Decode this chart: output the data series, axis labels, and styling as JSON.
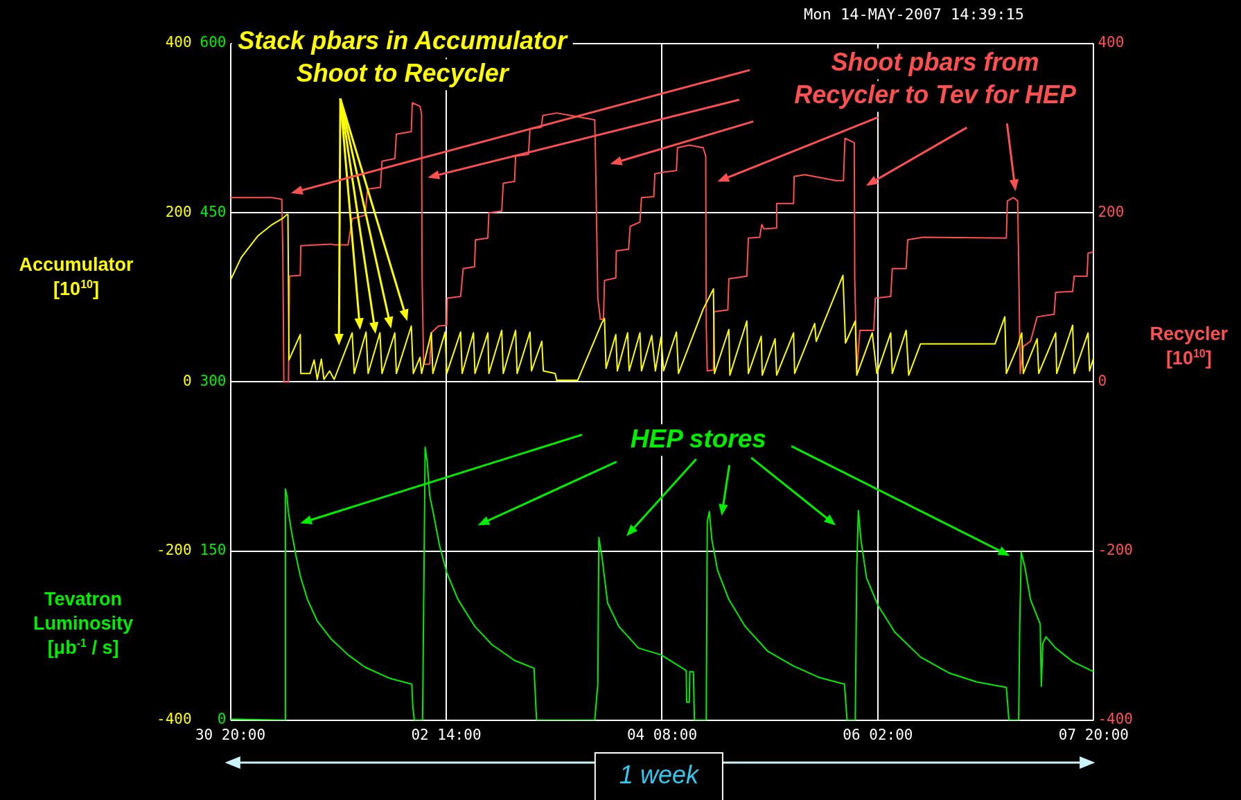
{
  "chart_data": {
    "type": "line",
    "title": "Mon 14-MAY-2007 14:39:15",
    "ylabel": "Accumulator\n[10$^{10}$]",
    "y2label": "Recycler\n[10$^{10}$]",
    "y3label": "Tevatron\nLuminosity\n[μb$^{-1}$ / s]",
    "annotations": [
      "Stack pbars in Accumulator\nShoot to Recycler",
      "Shoot pbars from\nRecycler to Tev for HEP",
      "HEP stores",
      "1 week"
    ],
    "xlim": [
      "2007-04-30T20:00",
      "2007-05-07T20:00"
    ],
    "xticks": [
      {
        "value": "2007-04-30T20:00",
        "label": "30 20:00"
      },
      {
        "value": "2007-05-02T14:00",
        "label": "02 14:00"
      },
      {
        "value": "2007-05-04T08:00",
        "label": "04 08:00"
      },
      {
        "value": "2007-05-06T02:00",
        "label": "06 02:00"
      },
      {
        "value": "2007-05-07T20:00",
        "label": "07 20:00"
      }
    ],
    "ylim": [
      -400,
      400
    ],
    "yticks": [
      -400,
      -200,
      0,
      200,
      400
    ],
    "y2lim": [
      -400,
      400
    ],
    "y2ticks": [
      -400,
      -200,
      0,
      200,
      400
    ],
    "y3lim": [
      0,
      600
    ],
    "y3ticks": [
      0,
      150,
      300,
      450,
      600
    ],
    "grid": true,
    "marker": "none",
    "series": [
      {
        "color": "#ffff00",
        "x": [
          "2007-04-30T20:00",
          "2007-04-30T22:06",
          "2007-05-01T01:24",
          "2007-05-01T04:06",
          "2007-05-01T06:18",
          "2007-05-01T07:00",
          "2007-05-01T07:12",
          "2007-05-01T07:24",
          "2007-05-01T09:36",
          "2007-05-01T09:42",
          "2007-05-01T11:30",
          "2007-05-01T12:18",
          "2007-05-01T12:54",
          "2007-05-01T13:42",
          "2007-05-01T14:12",
          "2007-05-01T15:18",
          "2007-05-01T16:12",
          "2007-05-01T19:42",
          "2007-05-01T20:06",
          "2007-05-01T22:24",
          "2007-05-01T22:48",
          "2007-05-02T01:06",
          "2007-05-02T01:30",
          "2007-05-02T04:00",
          "2007-05-02T04:18",
          "2007-05-02T07:12",
          "2007-05-02T07:36",
          "2007-05-02T08:54",
          "2007-05-02T09:12",
          "2007-05-02T11:06",
          "2007-05-02T11:24",
          "2007-05-02T13:48",
          "2007-05-02T14:06",
          "2007-05-02T16:48",
          "2007-05-02T17:06",
          "2007-05-02T19:18",
          "2007-05-02T19:36",
          "2007-05-02T22:06",
          "2007-05-02T22:18",
          "2007-05-03T00:48",
          "2007-05-03T01:06",
          "2007-05-03T03:30",
          "2007-05-03T03:48",
          "2007-05-03T06:18",
          "2007-05-03T06:36",
          "2007-05-03T08:36",
          "2007-05-03T08:54",
          "2007-05-03T11:12",
          "2007-05-03T11:30",
          "2007-05-03T15:36",
          "2007-05-03T20:18",
          "2007-05-03T20:48",
          "2007-05-03T21:06",
          "2007-05-03T23:00",
          "2007-05-03T23:18",
          "2007-05-04T01:18",
          "2007-05-04T01:36",
          "2007-05-04T03:42",
          "2007-05-04T04:00",
          "2007-05-04T06:00",
          "2007-05-04T06:42",
          "2007-05-04T07:48",
          "2007-05-04T08:18",
          "2007-05-04T10:48",
          "2007-05-04T11:12",
          "2007-05-04T16:00",
          "2007-05-04T18:00",
          "2007-05-04T18:12",
          "2007-05-04T21:00",
          "2007-05-04T21:12",
          "2007-05-05T00:30",
          "2007-05-05T00:48",
          "2007-05-05T03:18",
          "2007-05-05T03:30",
          "2007-05-05T06:00",
          "2007-05-05T06:18",
          "2007-05-05T09:36",
          "2007-05-05T09:48",
          "2007-05-05T13:42",
          "2007-05-05T14:00",
          "2007-05-05T19:12",
          "2007-05-05T19:42",
          "2007-05-05T21:36",
          "2007-05-05T21:54",
          "2007-05-06T00:54",
          "2007-05-06T01:48",
          "2007-05-06T04:30",
          "2007-05-06T04:48",
          "2007-05-06T07:30",
          "2007-05-06T08:00",
          "2007-05-06T10:18",
          "2007-05-07T00:48",
          "2007-05-07T02:42",
          "2007-05-07T03:00",
          "2007-05-07T05:12",
          "2007-05-07T06:00",
          "2007-05-07T06:18",
          "2007-05-07T09:00",
          "2007-05-07T09:18",
          "2007-05-07T12:36",
          "2007-05-07T12:48",
          "2007-05-07T15:54",
          "2007-05-07T16:12",
          "2007-05-07T18:54",
          "2007-05-07T19:12",
          "2007-05-07T20:00"
        ],
        "values": [
          120,
          147,
          173,
          186,
          194,
          198,
          198,
          26,
          56,
          10,
          10,
          26,
          3,
          27,
          3,
          13,
          3,
          58,
          10,
          59,
          10,
          58,
          10,
          58,
          10,
          66,
          10,
          29,
          10,
          58,
          10,
          59,
          10,
          59,
          10,
          58,
          10,
          58,
          10,
          61,
          10,
          61,
          10,
          59,
          13,
          48,
          13,
          10,
          2,
          2,
          70,
          75,
          16,
          56,
          13,
          58,
          13,
          58,
          13,
          55,
          13,
          53,
          13,
          59,
          10,
          86,
          110,
          10,
          62,
          8,
          72,
          10,
          54,
          8,
          51,
          8,
          58,
          10,
          69,
          48,
          126,
          46,
          72,
          8,
          58,
          10,
          58,
          10,
          61,
          8,
          45,
          45,
          77,
          10,
          42,
          58,
          10,
          51,
          10,
          58,
          10,
          67,
          10,
          58,
          13,
          29
        ]
      },
      {
        "color": "#ff5050",
        "axis": "y2",
        "x": [
          "2007-04-30T20:00",
          "2007-05-01T04:06",
          "2007-05-01T06:00",
          "2007-05-01T06:12",
          "2007-05-01T06:24",
          "2007-05-01T07:18",
          "2007-05-01T07:30",
          "2007-05-01T09:36",
          "2007-05-01T09:42",
          "2007-05-01T15:36",
          "2007-05-01T16:12",
          "2007-05-01T18:54",
          "2007-05-01T19:42",
          "2007-05-01T22:12",
          "2007-05-01T22:42",
          "2007-05-02T01:12",
          "2007-05-02T01:30",
          "2007-05-02T04:00",
          "2007-05-02T04:18",
          "2007-05-02T07:12",
          "2007-05-02T07:24",
          "2007-05-02T08:54",
          "2007-05-02T09:12",
          "2007-05-02T09:18",
          "2007-05-02T09:36",
          "2007-05-02T10:48",
          "2007-05-02T11:06",
          "2007-05-02T12:30",
          "2007-05-02T14:06",
          "2007-05-02T14:12",
          "2007-05-02T16:48",
          "2007-05-02T17:18",
          "2007-05-02T19:30",
          "2007-05-02T19:42",
          "2007-05-02T22:06",
          "2007-05-02T22:18",
          "2007-05-03T00:48",
          "2007-05-03T01:06",
          "2007-05-03T03:18",
          "2007-05-03T03:30",
          "2007-05-03T06:00",
          "2007-05-03T06:18",
          "2007-05-03T08:30",
          "2007-05-03T08:48",
          "2007-05-03T11:30",
          "2007-05-03T14:12",
          "2007-05-03T17:00",
          "2007-05-03T18:54",
          "2007-05-03T19:06",
          "2007-05-03T19:30",
          "2007-05-03T20:00",
          "2007-05-03T20:36",
          "2007-05-03T20:48",
          "2007-05-03T23:00",
          "2007-05-03T23:06",
          "2007-05-04T01:30",
          "2007-05-04T01:48",
          "2007-05-04T03:42",
          "2007-05-04T04:00",
          "2007-05-04T06:24",
          "2007-05-04T06:36",
          "2007-05-04T08:18",
          "2007-05-04T10:48",
          "2007-05-04T11:00",
          "2007-05-04T13:18",
          "2007-05-04T16:00",
          "2007-05-04T16:30",
          "2007-05-04T16:36",
          "2007-05-04T16:48",
          "2007-05-04T18:00",
          "2007-05-04T18:06",
          "2007-05-04T20:48",
          "2007-05-04T21:00",
          "2007-05-05T00:30",
          "2007-05-05T00:48",
          "2007-05-05T03:00",
          "2007-05-05T03:24",
          "2007-05-05T03:48",
          "2007-05-05T06:12",
          "2007-05-05T06:18",
          "2007-05-05T09:36",
          "2007-05-05T09:42",
          "2007-05-05T11:48",
          "2007-05-05T14:30",
          "2007-05-05T17:48",
          "2007-05-05T19:18",
          "2007-05-05T19:36",
          "2007-05-05T21:24",
          "2007-05-05T21:30",
          "2007-05-05T21:54",
          "2007-05-05T22:30",
          "2007-05-06T01:12",
          "2007-05-06T01:30",
          "2007-05-06T04:30",
          "2007-05-06T04:48",
          "2007-05-06T07:30",
          "2007-05-06T07:48",
          "2007-05-06T10:48",
          "2007-05-07T03:00",
          "2007-05-07T03:12",
          "2007-05-07T04:24",
          "2007-05-07T05:12",
          "2007-05-07T05:24",
          "2007-05-07T05:42",
          "2007-05-07T06:18",
          "2007-05-07T07:42",
          "2007-05-07T09:00",
          "2007-05-07T12:18",
          "2007-05-07T12:36",
          "2007-05-07T15:54",
          "2007-05-07T16:12",
          "2007-05-07T18:42",
          "2007-05-07T18:54",
          "2007-05-07T20:00"
        ],
        "values": [
          218,
          218,
          216,
          154,
          0,
          0,
          125,
          126,
          161,
          163,
          162,
          162,
          193,
          197,
          228,
          230,
          261,
          264,
          293,
          296,
          330,
          326,
          317,
          125,
          21,
          21,
          58,
          66,
          67,
          99,
          101,
          134,
          136,
          168,
          170,
          200,
          202,
          235,
          237,
          267,
          269,
          299,
          301,
          315,
          318,
          315,
          312,
          310,
          250,
          99,
          74,
          74,
          120,
          123,
          155,
          157,
          184,
          189,
          218,
          219,
          246,
          248,
          250,
          277,
          280,
          277,
          267,
          67,
          13,
          14,
          83,
          85,
          122,
          125,
          170,
          171,
          186,
          181,
          182,
          211,
          211,
          243,
          245,
          242,
          238,
          238,
          288,
          283,
          122,
          13,
          61,
          61,
          99,
          101,
          134,
          134,
          168,
          171,
          170,
          214,
          218,
          214,
          138,
          10,
          42,
          48,
          77,
          80,
          106,
          107,
          125,
          125,
          152,
          154
        ]
      },
      {
        "color": "#00ee00",
        "axis": "y3",
        "x": [
          "2007-04-30T20:00",
          "2007-05-01T06:36",
          "2007-05-01T06:42",
          "2007-05-01T07:00",
          "2007-05-01T07:18",
          "2007-05-01T07:54",
          "2007-05-01T08:48",
          "2007-05-01T09:36",
          "2007-05-01T11:00",
          "2007-05-01T12:54",
          "2007-05-01T15:36",
          "2007-05-01T18:54",
          "2007-05-01T22:12",
          "2007-05-02T03:06",
          "2007-05-02T07:18",
          "2007-05-02T07:30",
          "2007-05-02T07:48",
          "2007-05-02T09:24",
          "2007-05-02T09:36",
          "2007-05-02T09:54",
          "2007-05-02T10:18",
          "2007-05-02T10:48",
          "2007-05-02T11:36",
          "2007-05-02T12:42",
          "2007-05-02T14:06",
          "2007-05-02T16:18",
          "2007-05-02T19:36",
          "2007-05-02T22:54",
          "2007-05-03T03:18",
          "2007-05-03T07:06",
          "2007-05-03T07:24",
          "2007-05-03T07:36",
          "2007-05-03T18:54",
          "2007-05-03T19:30",
          "2007-05-03T19:42",
          "2007-05-03T20:18",
          "2007-05-03T21:24",
          "2007-05-03T23:36",
          "2007-05-04T03:24",
          "2007-05-04T07:48",
          "2007-05-04T12:42",
          "2007-05-04T12:48",
          "2007-05-04T13:18",
          "2007-05-04T13:24",
          "2007-05-04T14:06",
          "2007-05-04T14:18",
          "2007-05-04T16:36",
          "2007-05-04T16:48",
          "2007-05-04T17:12",
          "2007-05-04T17:42",
          "2007-05-04T18:48",
          "2007-05-04T21:00",
          "2007-05-05T00:12",
          "2007-05-05T04:36",
          "2007-05-05T09:36",
          "2007-05-05T14:30",
          "2007-05-05T19:30",
          "2007-05-05T20:00",
          "2007-05-05T21:36",
          "2007-05-05T21:54",
          "2007-05-05T22:12",
          "2007-05-05T22:42",
          "2007-05-05T23:48",
          "2007-05-06T02:00",
          "2007-05-06T05:18",
          "2007-05-06T10:18",
          "2007-05-06T15:48",
          "2007-05-06T21:12",
          "2007-05-07T03:00",
          "2007-05-07T03:30",
          "2007-05-07T05:24",
          "2007-05-07T05:36",
          "2007-05-07T05:54",
          "2007-05-07T06:36",
          "2007-05-07T07:42",
          "2007-05-07T09:36",
          "2007-05-07T09:48",
          "2007-05-07T10:06",
          "2007-05-07T10:42",
          "2007-05-07T12:36",
          "2007-05-07T15:54",
          "2007-05-07T20:00"
        ],
        "values": [
          1,
          0,
          205,
          199,
          184,
          167,
          145,
          128,
          107,
          88,
          72,
          58,
          47,
          37,
          32,
          12,
          0,
          0,
          97,
          242,
          229,
          199,
          181,
          155,
          131,
          107,
          83,
          67,
          53,
          46,
          16,
          0,
          0,
          32,
          162,
          145,
          104,
          83,
          64,
          58,
          44,
          16,
          16,
          43,
          43,
          0,
          0,
          176,
          185,
          160,
          133,
          107,
          83,
          61,
          48,
          38,
          32,
          0,
          0,
          136,
          186,
          160,
          126,
          102,
          78,
          56,
          42,
          34,
          29,
          0,
          0,
          83,
          149,
          136,
          107,
          85,
          30,
          68,
          74,
          64,
          52,
          43
        ]
      }
    ]
  }
}
